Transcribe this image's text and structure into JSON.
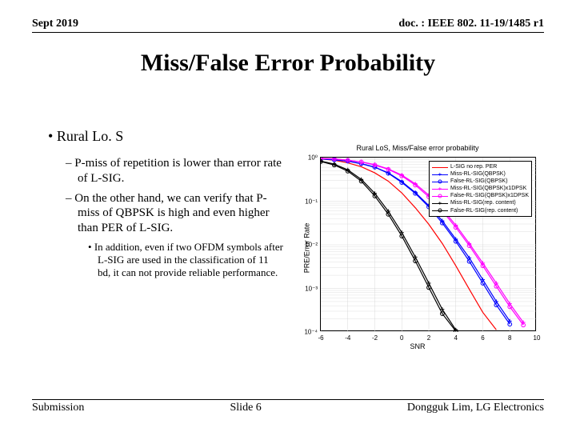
{
  "header": {
    "date": "Sept 2019",
    "doc": "doc. : IEEE 802. 11-19/1485 r1"
  },
  "title": "Miss/False Error Probability",
  "bullets": {
    "h1": "Rural Lo. S",
    "h2a": "P-miss of repetition is lower than error rate of L-SIG.",
    "h2b": "On the other hand, we can verify that P-miss of QBPSK is high and even higher than PER of L-SIG.",
    "h3": "In addition, even if two OFDM symbols after L-SIG are used in the classification of 11 bd, it can not provide reliable performance."
  },
  "chart": {
    "title": "Rural LoS, Miss/False error probability",
    "ylabel": "PRE/Error Rate",
    "xlabel": "SNR",
    "xlim": [
      -6,
      10
    ],
    "ylim_exp": [
      -4,
      0
    ],
    "xticks": [
      -6,
      -4,
      -2,
      0,
      2,
      4,
      6,
      8,
      10
    ],
    "ytick_exp": [
      0,
      -1,
      -2,
      -3,
      -4
    ],
    "ytick_labels": [
      "10⁰",
      "10⁻¹",
      "10⁻²",
      "10⁻³",
      "10⁻⁴"
    ],
    "grid_color": "#d8d8d8",
    "series": [
      {
        "name": "L-SIG no rep. PER",
        "color": "#ff0000",
        "marker": "none",
        "pts": [
          [
            -6,
            -0.03
          ],
          [
            -5,
            -0.06
          ],
          [
            -4,
            -0.12
          ],
          [
            -3,
            -0.21
          ],
          [
            -2,
            -0.35
          ],
          [
            -1,
            -0.54
          ],
          [
            0,
            -0.81
          ],
          [
            1,
            -1.15
          ],
          [
            2,
            -1.53
          ],
          [
            3,
            -1.97
          ],
          [
            4,
            -2.48
          ],
          [
            5,
            -3.02
          ],
          [
            6,
            -3.55
          ],
          [
            7,
            -3.95
          ]
        ]
      },
      {
        "name": "Miss-RL-SIG(QBPSK)",
        "color": "#0000ff",
        "marker": "plus",
        "pts": [
          [
            -6,
            -0.03
          ],
          [
            -5,
            -0.05
          ],
          [
            -4,
            -0.08
          ],
          [
            -3,
            -0.14
          ],
          [
            -2,
            -0.22
          ],
          [
            -1,
            -0.35
          ],
          [
            0,
            -0.55
          ],
          [
            1,
            -0.8
          ],
          [
            2,
            -1.1
          ],
          [
            3,
            -1.45
          ],
          [
            4,
            -1.87
          ],
          [
            5,
            -2.3
          ],
          [
            6,
            -2.8
          ],
          [
            7,
            -3.3
          ],
          [
            8,
            -3.75
          ]
        ]
      },
      {
        "name": "False-RL-SIG(QBPSK)",
        "color": "#0000ff",
        "marker": "circle",
        "pts": [
          [
            -6,
            -0.03
          ],
          [
            -5,
            -0.05
          ],
          [
            -4,
            -0.08
          ],
          [
            -3,
            -0.14
          ],
          [
            -2,
            -0.22
          ],
          [
            -1,
            -0.36
          ],
          [
            0,
            -0.57
          ],
          [
            1,
            -0.82
          ],
          [
            2,
            -1.13
          ],
          [
            3,
            -1.5
          ],
          [
            4,
            -1.92
          ],
          [
            5,
            -2.38
          ],
          [
            6,
            -2.88
          ],
          [
            7,
            -3.38
          ],
          [
            8,
            -3.82
          ]
        ]
      },
      {
        "name": "Miss-RL-SIG(QBPSK)x1DPSK",
        "color": "#ff00ff",
        "marker": "plus",
        "pts": [
          [
            -6,
            -0.02
          ],
          [
            -5,
            -0.03
          ],
          [
            -4,
            -0.06
          ],
          [
            -3,
            -0.1
          ],
          [
            -2,
            -0.16
          ],
          [
            -1,
            -0.26
          ],
          [
            0,
            -0.4
          ],
          [
            1,
            -0.6
          ],
          [
            2,
            -0.86
          ],
          [
            3,
            -1.18
          ],
          [
            4,
            -1.55
          ],
          [
            5,
            -1.97
          ],
          [
            6,
            -2.42
          ],
          [
            7,
            -2.88
          ],
          [
            8,
            -3.35
          ],
          [
            9,
            -3.78
          ]
        ]
      },
      {
        "name": "False-RL-SIG(QBPSK)x1DPSK",
        "color": "#ff00ff",
        "marker": "circle",
        "pts": [
          [
            -6,
            -0.02
          ],
          [
            -5,
            -0.03
          ],
          [
            -4,
            -0.06
          ],
          [
            -3,
            -0.1
          ],
          [
            -2,
            -0.17
          ],
          [
            -1,
            -0.27
          ],
          [
            0,
            -0.42
          ],
          [
            1,
            -0.63
          ],
          [
            2,
            -0.9
          ],
          [
            3,
            -1.22
          ],
          [
            4,
            -1.6
          ],
          [
            5,
            -2.02
          ],
          [
            6,
            -2.48
          ],
          [
            7,
            -2.95
          ],
          [
            8,
            -3.42
          ],
          [
            9,
            -3.84
          ]
        ]
      },
      {
        "name": "Miss-RL-SIG(rep. content)",
        "color": "#000000",
        "marker": "plus",
        "pts": [
          [
            -6,
            -0.08
          ],
          [
            -5,
            -0.15
          ],
          [
            -4,
            -0.28
          ],
          [
            -3,
            -0.5
          ],
          [
            -2,
            -0.82
          ],
          [
            -1,
            -1.23
          ],
          [
            0,
            -1.72
          ],
          [
            1,
            -2.28
          ],
          [
            2,
            -2.88
          ],
          [
            3,
            -3.48
          ],
          [
            4,
            -3.95
          ]
        ]
      },
      {
        "name": "False-RL-SIG(rep. content)",
        "color": "#000000",
        "marker": "circle",
        "pts": [
          [
            -6,
            -0.09
          ],
          [
            -5,
            -0.17
          ],
          [
            -4,
            -0.31
          ],
          [
            -3,
            -0.54
          ],
          [
            -2,
            -0.88
          ],
          [
            -1,
            -1.3
          ],
          [
            0,
            -1.8
          ],
          [
            1,
            -2.37
          ],
          [
            2,
            -2.98
          ],
          [
            3,
            -3.58
          ],
          [
            4,
            -3.98
          ]
        ]
      }
    ],
    "legend": [
      {
        "label": "L-SIG no rep. PER",
        "color": "#ff0000",
        "marker": "none"
      },
      {
        "label": "Miss-RL-SIG(QBPSK)",
        "color": "#0000ff",
        "marker": "plus"
      },
      {
        "label": "False-RL-SIG(QBPSK)",
        "color": "#0000ff",
        "marker": "circle"
      },
      {
        "label": "Miss-RL-SIG(QBPSK)x1DPSK",
        "color": "#ff00ff",
        "marker": "plus"
      },
      {
        "label": "False-RL-SIG(QBPSK)x1DPSK",
        "color": "#ff00ff",
        "marker": "circle"
      },
      {
        "label": "Miss-RL-SIG(rep. content)",
        "color": "#000000",
        "marker": "plus"
      },
      {
        "label": "False-RL-SIG(rep. content)",
        "color": "#000000",
        "marker": "circle"
      }
    ]
  },
  "footer": {
    "left": "Submission",
    "center": "Slide 6",
    "right": "Dongguk Lim, LG Electronics"
  }
}
